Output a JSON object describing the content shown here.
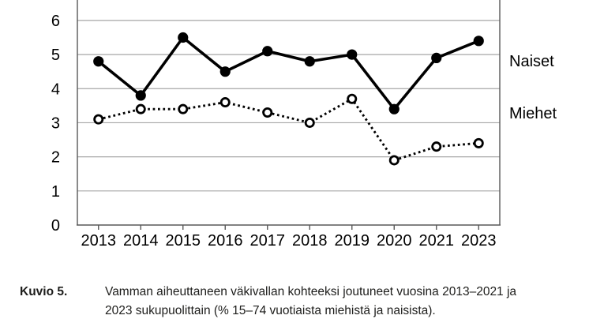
{
  "chart_data": {
    "type": "line",
    "title": "",
    "xlabel": "",
    "ylabel": "",
    "categories": [
      "2013",
      "2014",
      "2015",
      "2016",
      "2017",
      "2018",
      "2019",
      "2020",
      "2021",
      "2023"
    ],
    "series": [
      {
        "name": "Naiset",
        "values": [
          4.8,
          3.8,
          5.5,
          4.5,
          5.1,
          4.8,
          5.0,
          3.4,
          4.9,
          5.4
        ],
        "line_style": "solid",
        "marker": "filled-circle",
        "color": "#000000"
      },
      {
        "name": "Miehet",
        "values": [
          3.1,
          3.4,
          3.4,
          3.6,
          3.3,
          3.0,
          3.7,
          1.9,
          2.3,
          2.4
        ],
        "line_style": "dotted",
        "marker": "open-circle",
        "color": "#000000"
      }
    ],
    "yticks": [
      0,
      1,
      2,
      3,
      4,
      5,
      6
    ],
    "ylim": [
      0,
      6.6
    ],
    "grid": true,
    "legend_position": "right-outside",
    "grid_color": "#a6a6a6",
    "axis_color": "#595959",
    "top_cropped": true
  },
  "caption": {
    "label": "Kuvio 5.",
    "text": "Vamman aiheuttaneen väkivallan kohteeksi joutuneet vuosina 2013–2021 ja 2023 sukupuolittain (% 15–74 vuotiaista miehistä ja naisista).",
    "lines": [
      "Vamman aiheuttaneen väkivallan kohteeksi joutuneet vuosina 2013–2021 ja",
      "2023 sukupuolittain (% 15–74 vuotiaista miehistä ja naisista)."
    ]
  }
}
